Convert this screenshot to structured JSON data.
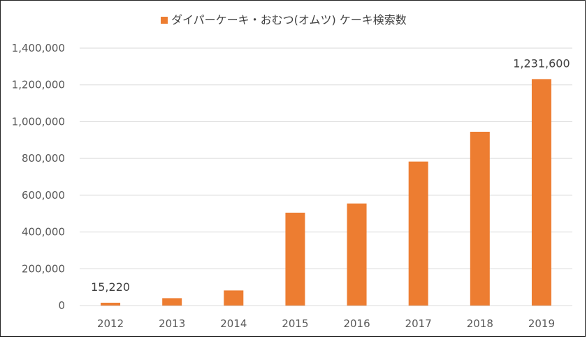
{
  "chart_data": {
    "type": "bar",
    "categories": [
      "2012",
      "2013",
      "2014",
      "2015",
      "2016",
      "2017",
      "2018",
      "2019"
    ],
    "series": [
      {
        "name": "ダイパーケーキ・おむつ(オムツ) ケーキ検索数",
        "values": [
          15220,
          40000,
          82000,
          505000,
          555000,
          783000,
          945000,
          1231600
        ],
        "color": "#ED7D31"
      }
    ],
    "data_labels": [
      {
        "category": "2012",
        "text": "15,220"
      },
      {
        "category": "2019",
        "text": "1,231,600"
      }
    ],
    "yticks": [
      "0",
      "200,000",
      "400,000",
      "600,000",
      "800,000",
      "1,000,000",
      "1,200,000",
      "1,400,000"
    ],
    "ylim": [
      0,
      1400000
    ],
    "grid": true,
    "legend_position": "top-center",
    "gridline_color": "#D9D9D9",
    "title": "",
    "xlabel": "",
    "ylabel": ""
  }
}
